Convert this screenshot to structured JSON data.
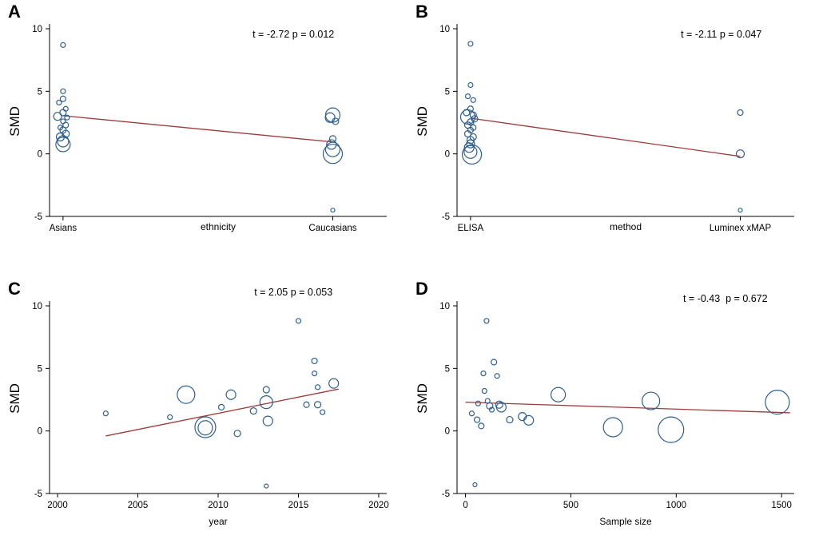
{
  "colors": {
    "point": "#2f5f8f",
    "line": "#9e3a3a",
    "axis": "#000000"
  },
  "chart_data": [
    {
      "panel": "A",
      "type": "scatter",
      "annotation": "t = -2.72 p = 0.012",
      "ylabel": "SMD",
      "xlabel": "ethnicity",
      "x_categories": [
        "Asians",
        "Caucasians"
      ],
      "ylim": [
        -5,
        10
      ],
      "yticks": [
        -5,
        0,
        5,
        10
      ],
      "points": [
        {
          "x": 0,
          "y": 8.7,
          "r": 3
        },
        {
          "x": 0,
          "y": 5.0,
          "r": 3
        },
        {
          "x": 0,
          "y": 4.4,
          "r": 3.5
        },
        {
          "x": -0.015,
          "y": 4.1,
          "r": 3
        },
        {
          "x": 0.01,
          "y": 3.6,
          "r": 3
        },
        {
          "x": 0,
          "y": 3.3,
          "r": 4
        },
        {
          "x": -0.02,
          "y": 3.0,
          "r": 5
        },
        {
          "x": 0.015,
          "y": 2.9,
          "r": 3
        },
        {
          "x": 0,
          "y": 2.6,
          "r": 3
        },
        {
          "x": 0.01,
          "y": 2.3,
          "r": 3.5
        },
        {
          "x": -0.01,
          "y": 2.1,
          "r": 3
        },
        {
          "x": 0,
          "y": 1.9,
          "r": 4
        },
        {
          "x": 0.01,
          "y": 1.6,
          "r": 4.5
        },
        {
          "x": -0.01,
          "y": 1.35,
          "r": 5
        },
        {
          "x": 0,
          "y": 1.0,
          "r": 7
        },
        {
          "x": 0,
          "y": 0.75,
          "r": 9
        },
        {
          "x": 1,
          "y": 3.1,
          "r": 9
        },
        {
          "x": 0.99,
          "y": 2.9,
          "r": 6
        },
        {
          "x": 1.01,
          "y": 2.6,
          "r": 4
        },
        {
          "x": 1,
          "y": 1.2,
          "r": 4
        },
        {
          "x": 0.995,
          "y": 0.75,
          "r": 6
        },
        {
          "x": 1,
          "y": 0.35,
          "r": 9
        },
        {
          "x": 1,
          "y": 0.0,
          "r": 12
        },
        {
          "x": 1,
          "y": -4.5,
          "r": 2.5
        }
      ],
      "regression_line": {
        "x": [
          0,
          1
        ],
        "y": [
          3.05,
          0.95
        ]
      }
    },
    {
      "panel": "B",
      "type": "scatter",
      "annotation": "t = -2.11 p = 0.047",
      "ylabel": "SMD",
      "xlabel": "method",
      "x_categories": [
        "ELISA",
        "Luminex xMAP"
      ],
      "ylim": [
        -5,
        10
      ],
      "yticks": [
        -5,
        0,
        5,
        10
      ],
      "points": [
        {
          "x": 0,
          "y": 8.8,
          "r": 3
        },
        {
          "x": 0,
          "y": 5.5,
          "r": 3
        },
        {
          "x": -0.01,
          "y": 4.6,
          "r": 3
        },
        {
          "x": 0.01,
          "y": 4.3,
          "r": 3
        },
        {
          "x": 0,
          "y": 3.6,
          "r": 3.5
        },
        {
          "x": -0.015,
          "y": 3.3,
          "r": 4
        },
        {
          "x": 0.01,
          "y": 3.1,
          "r": 4
        },
        {
          "x": -0.01,
          "y": 2.95,
          "r": 9
        },
        {
          "x": 0.015,
          "y": 2.8,
          "r": 4
        },
        {
          "x": 0,
          "y": 2.55,
          "r": 4
        },
        {
          "x": -0.01,
          "y": 2.3,
          "r": 4
        },
        {
          "x": 0.01,
          "y": 2.1,
          "r": 3.5
        },
        {
          "x": 0,
          "y": 1.9,
          "r": 3.5
        },
        {
          "x": -0.01,
          "y": 1.6,
          "r": 4
        },
        {
          "x": 0.01,
          "y": 1.35,
          "r": 4
        },
        {
          "x": 0,
          "y": 1.1,
          "r": 4.5
        },
        {
          "x": 0,
          "y": 0.8,
          "r": 5
        },
        {
          "x": -0.005,
          "y": 0.5,
          "r": 6
        },
        {
          "x": 0,
          "y": 0.15,
          "r": 8
        },
        {
          "x": 0.005,
          "y": -0.05,
          "r": 12
        },
        {
          "x": 1,
          "y": 3.3,
          "r": 3.5
        },
        {
          "x": 1,
          "y": 0.0,
          "r": 5
        },
        {
          "x": 1,
          "y": -4.5,
          "r": 2.5
        }
      ],
      "regression_line": {
        "x": [
          0,
          1
        ],
        "y": [
          2.85,
          -0.2
        ]
      }
    },
    {
      "panel": "C",
      "type": "scatter",
      "annotation": "t = 2.05 p = 0.053",
      "ylabel": "SMD",
      "xlabel": "year",
      "xlim": [
        1999.5,
        2020.5
      ],
      "xticks": [
        2000,
        2005,
        2010,
        2015,
        2020
      ],
      "ylim": [
        -5,
        10
      ],
      "yticks": [
        -5,
        0,
        5,
        10
      ],
      "points": [
        {
          "x": 2003,
          "y": 1.4,
          "r": 3
        },
        {
          "x": 2007,
          "y": 1.1,
          "r": 3
        },
        {
          "x": 2008,
          "y": 2.9,
          "r": 11
        },
        {
          "x": 2009.2,
          "y": 0.3,
          "r": 13
        },
        {
          "x": 2009.2,
          "y": 0.25,
          "r": 9
        },
        {
          "x": 2010.2,
          "y": 1.9,
          "r": 3.5
        },
        {
          "x": 2010.8,
          "y": 2.9,
          "r": 6
        },
        {
          "x": 2011.2,
          "y": -0.2,
          "r": 4
        },
        {
          "x": 2012.2,
          "y": 1.6,
          "r": 4
        },
        {
          "x": 2013,
          "y": 3.3,
          "r": 4
        },
        {
          "x": 2013,
          "y": 2.3,
          "r": 8
        },
        {
          "x": 2013.1,
          "y": 0.8,
          "r": 6
        },
        {
          "x": 2013,
          "y": -4.4,
          "r": 2.5
        },
        {
          "x": 2015,
          "y": 8.8,
          "r": 3
        },
        {
          "x": 2015.5,
          "y": 2.1,
          "r": 3.5
        },
        {
          "x": 2016,
          "y": 5.6,
          "r": 3.5
        },
        {
          "x": 2016,
          "y": 4.6,
          "r": 3
        },
        {
          "x": 2016.2,
          "y": 3.5,
          "r": 3
        },
        {
          "x": 2016.2,
          "y": 2.1,
          "r": 4
        },
        {
          "x": 2016.5,
          "y": 1.5,
          "r": 3
        },
        {
          "x": 2017.2,
          "y": 3.8,
          "r": 6
        }
      ],
      "regression_line": {
        "x": [
          2003,
          2017.5
        ],
        "y": [
          -0.4,
          3.35
        ]
      }
    },
    {
      "panel": "D",
      "type": "scatter",
      "annotation": "t = -0.43  p = 0.672",
      "ylabel": "SMD",
      "xlabel": "Sample size",
      "xlim": [
        -40,
        1560
      ],
      "xticks": [
        0,
        500,
        1000,
        1500
      ],
      "ylim": [
        -5,
        10
      ],
      "yticks": [
        -5,
        0,
        5,
        10
      ],
      "points": [
        {
          "x": 30,
          "y": 1.4,
          "r": 3
        },
        {
          "x": 45,
          "y": -4.3,
          "r": 2.5
        },
        {
          "x": 55,
          "y": 0.9,
          "r": 3.5
        },
        {
          "x": 60,
          "y": 2.2,
          "r": 3
        },
        {
          "x": 75,
          "y": 0.4,
          "r": 3.5
        },
        {
          "x": 85,
          "y": 4.6,
          "r": 3
        },
        {
          "x": 90,
          "y": 3.2,
          "r": 3
        },
        {
          "x": 100,
          "y": 8.8,
          "r": 3
        },
        {
          "x": 105,
          "y": 2.4,
          "r": 3
        },
        {
          "x": 115,
          "y": 2.0,
          "r": 4
        },
        {
          "x": 125,
          "y": 1.7,
          "r": 3
        },
        {
          "x": 135,
          "y": 5.5,
          "r": 3.5
        },
        {
          "x": 150,
          "y": 4.4,
          "r": 3
        },
        {
          "x": 160,
          "y": 2.1,
          "r": 4.5
        },
        {
          "x": 170,
          "y": 1.9,
          "r": 6
        },
        {
          "x": 210,
          "y": 0.9,
          "r": 4
        },
        {
          "x": 270,
          "y": 1.15,
          "r": 5
        },
        {
          "x": 300,
          "y": 0.85,
          "r": 6
        },
        {
          "x": 440,
          "y": 2.9,
          "r": 9
        },
        {
          "x": 700,
          "y": 0.3,
          "r": 12
        },
        {
          "x": 880,
          "y": 2.4,
          "r": 11
        },
        {
          "x": 975,
          "y": 0.1,
          "r": 16
        },
        {
          "x": 1480,
          "y": 2.3,
          "r": 15
        }
      ],
      "regression_line": {
        "x": [
          0,
          1540
        ],
        "y": [
          2.3,
          1.45
        ]
      }
    }
  ]
}
